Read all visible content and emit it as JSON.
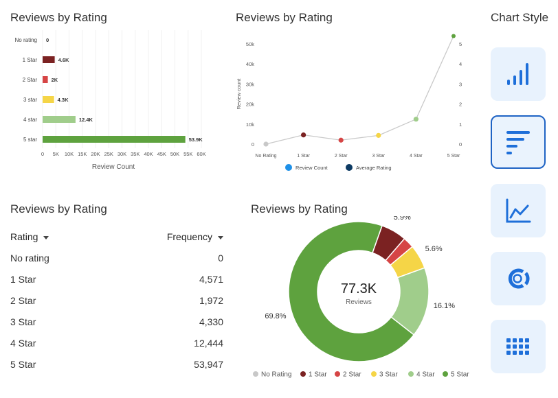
{
  "bar_chart": {
    "title": "Reviews by Rating",
    "xlabel": "Review Count"
  },
  "line_chart": {
    "title": "Reviews by Rating",
    "ylabel": "Review count",
    "legend": [
      "Review Count",
      "Average Rating"
    ]
  },
  "table": {
    "title": "Reviews by Rating",
    "col_rating": "Rating",
    "col_frequency": "Frequency",
    "rows": [
      {
        "rating": "No rating",
        "frequency": "0"
      },
      {
        "rating": "1 Star",
        "frequency": "4,571"
      },
      {
        "rating": "2 Star",
        "frequency": "1,972"
      },
      {
        "rating": "3 Star",
        "frequency": "4,330"
      },
      {
        "rating": "4 Star",
        "frequency": "12,444"
      },
      {
        "rating": "5 Star",
        "frequency": "53,947"
      }
    ]
  },
  "donut_chart": {
    "title": "Reviews by Rating",
    "center_value": "77.3K",
    "center_label": "Reviews"
  },
  "chart_style": {
    "title": "Chart Style",
    "options": [
      "bar-vertical",
      "bar-horizontal",
      "line",
      "donut",
      "table"
    ],
    "selected": "bar-horizontal"
  },
  "colors": {
    "no_rating": "#c8c8c8",
    "star1": "#7b2222",
    "star2": "#d64545",
    "star3": "#f5d547",
    "star4": "#a0cd8b",
    "star5": "#5ea23e",
    "accent": "#1e63c4"
  },
  "chart_data": [
    {
      "type": "bar",
      "orientation": "horizontal",
      "title": "Reviews by Rating",
      "categories": [
        "No rating",
        "1 Star",
        "2 Star",
        "3 star",
        "4 star",
        "5 star"
      ],
      "values": [
        0,
        4571,
        1972,
        4330,
        12444,
        53947
      ],
      "data_labels": [
        "0",
        "4.6K",
        "2K",
        "4.3K",
        "12.4K",
        "53.9K"
      ],
      "xlabel": "Review Count",
      "xlim": [
        0,
        60000
      ],
      "xticks": [
        "0",
        "5K",
        "10K",
        "15K",
        "20K",
        "25K",
        "30K",
        "35K",
        "40K",
        "45K",
        "50K",
        "55K",
        "60K"
      ]
    },
    {
      "type": "line",
      "title": "Reviews by Rating",
      "categories": [
        "No Rating",
        "1 Star",
        "2 Star",
        "3 Star",
        "4 Star",
        "5 Star"
      ],
      "series": [
        {
          "name": "Review Count",
          "axis": "left",
          "x": [
            0,
            1,
            2,
            3,
            4,
            5
          ],
          "values": [
            0,
            4571,
            1972,
            4330,
            12444,
            53947
          ]
        }
      ],
      "ylabel": "Review count",
      "ylim": [
        0,
        50000
      ],
      "yticks": [
        "0",
        "10k",
        "20k",
        "30k",
        "40k",
        "50k"
      ],
      "y2lim": [
        0,
        5
      ],
      "y2ticks": [
        "0",
        "1",
        "2",
        "3",
        "4",
        "5"
      ],
      "legend": [
        "Review Count",
        "Average Rating"
      ]
    },
    {
      "type": "pie",
      "title": "Reviews by Rating",
      "labels": [
        "No Rating",
        "1 Star",
        "2 Star",
        "3 Star",
        "4 Star",
        "5 Star"
      ],
      "values": [
        0,
        4571,
        1972,
        4330,
        12444,
        53947
      ],
      "percent_labels": [
        "",
        "5.9%",
        "",
        "5.6%",
        "16.1%",
        "69.8%"
      ],
      "center_value": "77.3K",
      "center_label": "Reviews"
    }
  ]
}
